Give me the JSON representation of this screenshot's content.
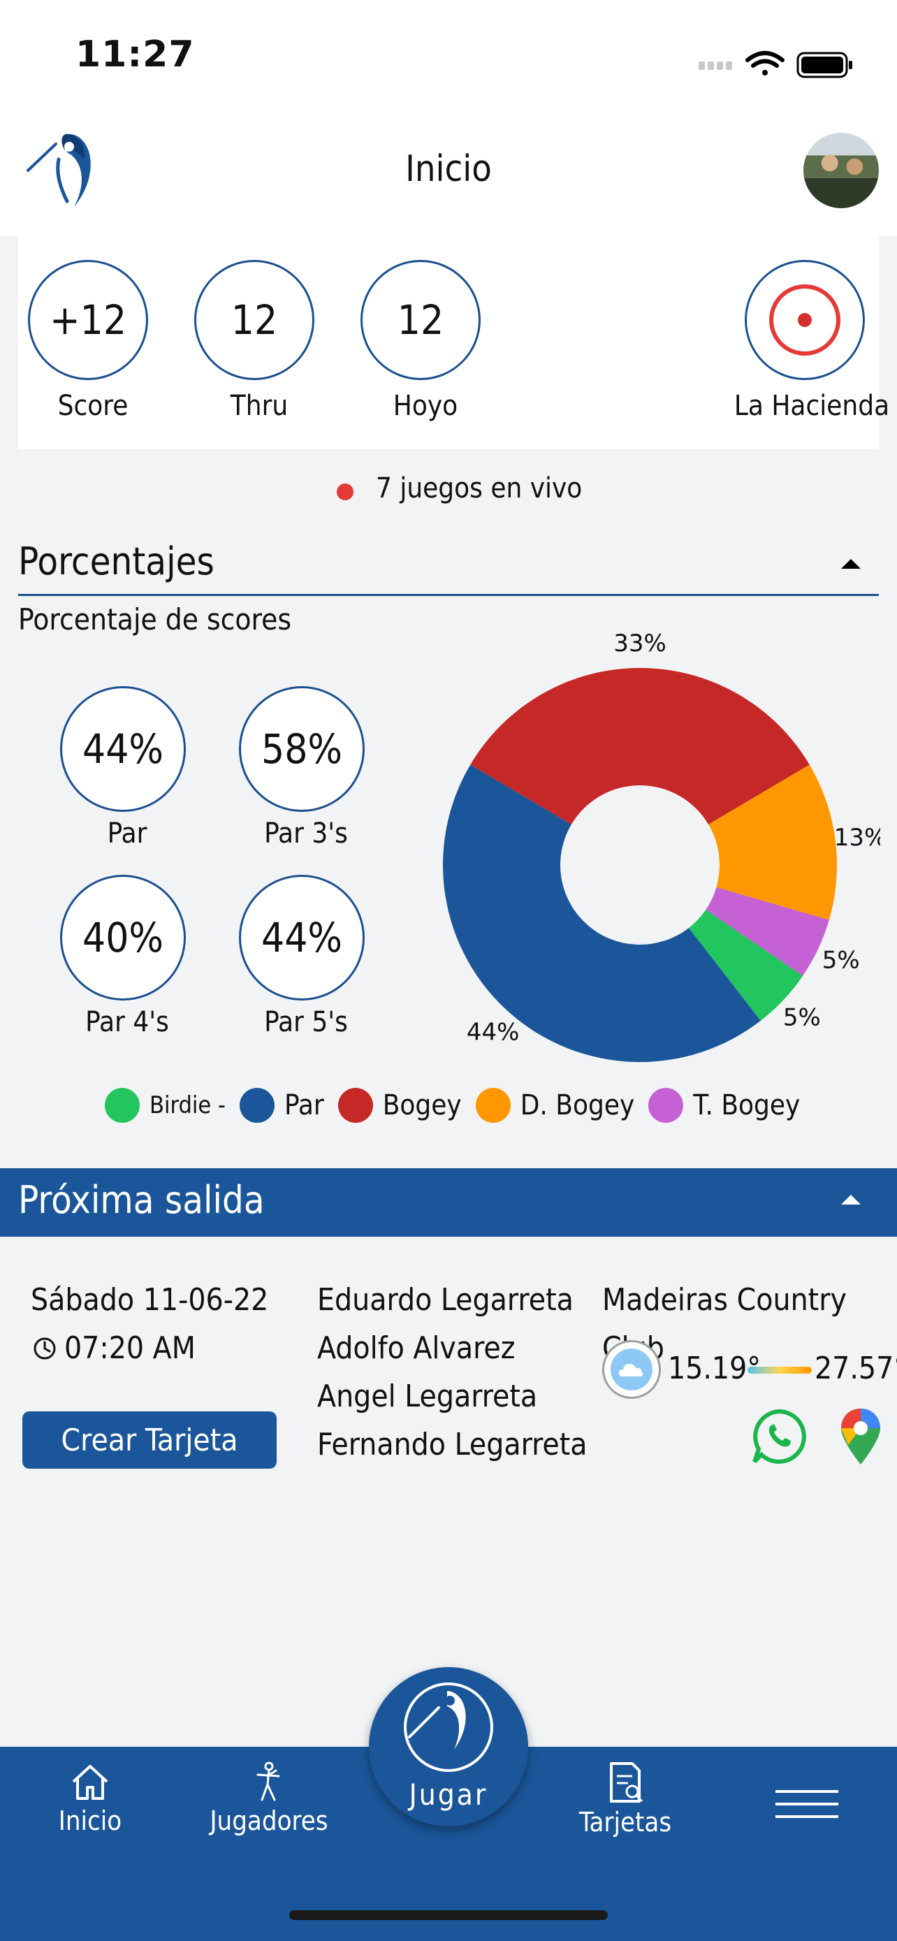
{
  "status_bar": {
    "time": "11:27"
  },
  "header": {
    "title": "Inicio"
  },
  "live_round": {
    "stats": [
      {
        "value": "+12",
        "label": "Score"
      },
      {
        "value": "12",
        "label": "Thru"
      },
      {
        "value": "12",
        "label": "Hoyo"
      }
    ],
    "course": "La Hacienda",
    "live_games": "7 juegos en vivo"
  },
  "percentages": {
    "section_title": "Porcentajes",
    "subtitle": "Porcentaje de scores",
    "items": [
      {
        "value": "44",
        "label": "Par"
      },
      {
        "value": "58",
        "label": "Par 3's"
      },
      {
        "value": "40",
        "label": "Par 4's"
      },
      {
        "value": "44",
        "label": "Par 5's"
      }
    ]
  },
  "chart_data": {
    "type": "pie",
    "slices": [
      {
        "name": "Birdie -",
        "value": 5,
        "label": "5",
        "color": "#22c55e"
      },
      {
        "name": "Par",
        "value": 44,
        "label": "44",
        "color": "#1b569a"
      },
      {
        "name": "Bogey",
        "value": 33,
        "label": "33",
        "color": "#c62828"
      },
      {
        "name": "D. Bogey",
        "value": 13,
        "label": "13",
        "color": "#ff9800"
      },
      {
        "name": "T. Bogey",
        "value": 5,
        "label": "5",
        "color": "#c561d4"
      }
    ],
    "legend": "bottom",
    "donut": true
  },
  "next_tee_time": {
    "section_title": "Próxima salida",
    "date": "Sábado 11-06-22",
    "time": "07:20 AM",
    "players": [
      "Eduardo Legarreta",
      "Adolfo Alvarez",
      "Angel Legarreta",
      "Fernando Legarreta"
    ],
    "club": "Madeiras Country Club",
    "temp_min": "15.19°",
    "temp_max": "27.57°",
    "button_label": "Crear Tarjeta"
  },
  "bottom_nav": {
    "items": [
      {
        "label": "Inicio"
      },
      {
        "label": "Jugadores"
      },
      {
        "label": "Tarjetas"
      }
    ],
    "play_label": "Jugar"
  },
  "colors": {
    "brand_blue": "#1b569a",
    "live_red": "#e53935"
  }
}
